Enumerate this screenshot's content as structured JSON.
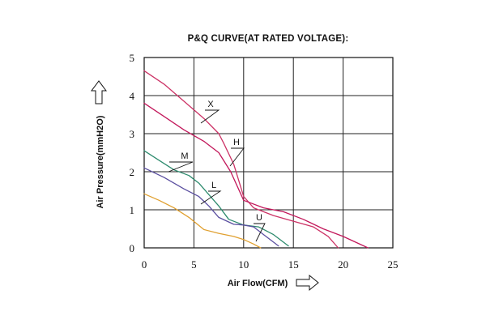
{
  "chart_data": {
    "type": "line",
    "title": "P&Q CURVE(AT RATED VOLTAGE):",
    "xlabel": "Air Flow(CFM)",
    "ylabel": "Air Pressure(mmH2O)",
    "xlim": [
      0,
      25
    ],
    "ylim": [
      0,
      5
    ],
    "x_ticks": [
      "0",
      "5",
      "10",
      "15",
      "20",
      "25"
    ],
    "y_ticks": [
      "0",
      "1",
      "2",
      "3",
      "4",
      "5"
    ],
    "grid": true,
    "legend": "none",
    "series": [
      {
        "name": "X",
        "color": "#cc3366",
        "points": [
          [
            0,
            4.65
          ],
          [
            2,
            4.3
          ],
          [
            4,
            3.85
          ],
          [
            6,
            3.4
          ],
          [
            7.5,
            3.0
          ],
          [
            8,
            2.75
          ],
          [
            9,
            2.2
          ],
          [
            10,
            1.35
          ],
          [
            11,
            1.05
          ],
          [
            13,
            0.85
          ],
          [
            15,
            0.7
          ],
          [
            17,
            0.55
          ],
          [
            18.5,
            0.3
          ],
          [
            19.5,
            0.0
          ]
        ]
      },
      {
        "name": "H",
        "color": "#c2185b",
        "points": [
          [
            0,
            3.8
          ],
          [
            2,
            3.45
          ],
          [
            4,
            3.1
          ],
          [
            6,
            2.8
          ],
          [
            7.5,
            2.5
          ],
          [
            8.7,
            2.0
          ],
          [
            10,
            1.25
          ],
          [
            12,
            1.05
          ],
          [
            14,
            0.95
          ],
          [
            16,
            0.75
          ],
          [
            18,
            0.5
          ],
          [
            20,
            0.3
          ],
          [
            22.5,
            0.0
          ]
        ]
      },
      {
        "name": "M",
        "color": "#2e8b6e",
        "points": [
          [
            0,
            2.55
          ],
          [
            1.5,
            2.3
          ],
          [
            3,
            2.05
          ],
          [
            4.5,
            1.9
          ],
          [
            5.5,
            1.7
          ],
          [
            6.5,
            1.4
          ],
          [
            7.5,
            1.1
          ],
          [
            8.5,
            0.75
          ],
          [
            10,
            0.6
          ],
          [
            11.5,
            0.55
          ],
          [
            13,
            0.35
          ],
          [
            14.5,
            0.05
          ]
        ]
      },
      {
        "name": "L",
        "color": "#5b4fa0",
        "points": [
          [
            0,
            2.1
          ],
          [
            2,
            1.85
          ],
          [
            4,
            1.55
          ],
          [
            5.5,
            1.35
          ],
          [
            6.5,
            1.1
          ],
          [
            7.5,
            0.8
          ],
          [
            9,
            0.62
          ],
          [
            10,
            0.6
          ],
          [
            11,
            0.55
          ],
          [
            12,
            0.35
          ],
          [
            13,
            0.15
          ],
          [
            13.5,
            0.05
          ]
        ]
      },
      {
        "name": "U",
        "color": "#e0a030",
        "points": [
          [
            0,
            1.42
          ],
          [
            1.5,
            1.25
          ],
          [
            3,
            1.05
          ],
          [
            4.5,
            0.8
          ],
          [
            6,
            0.48
          ],
          [
            7.5,
            0.38
          ],
          [
            9,
            0.3
          ],
          [
            10,
            0.22
          ],
          [
            11,
            0.1
          ],
          [
            11.7,
            0.0
          ]
        ]
      }
    ],
    "annotations": [
      {
        "text": "X"
      },
      {
        "text": "H"
      },
      {
        "text": "M"
      },
      {
        "text": "L"
      },
      {
        "text": "U"
      }
    ]
  }
}
